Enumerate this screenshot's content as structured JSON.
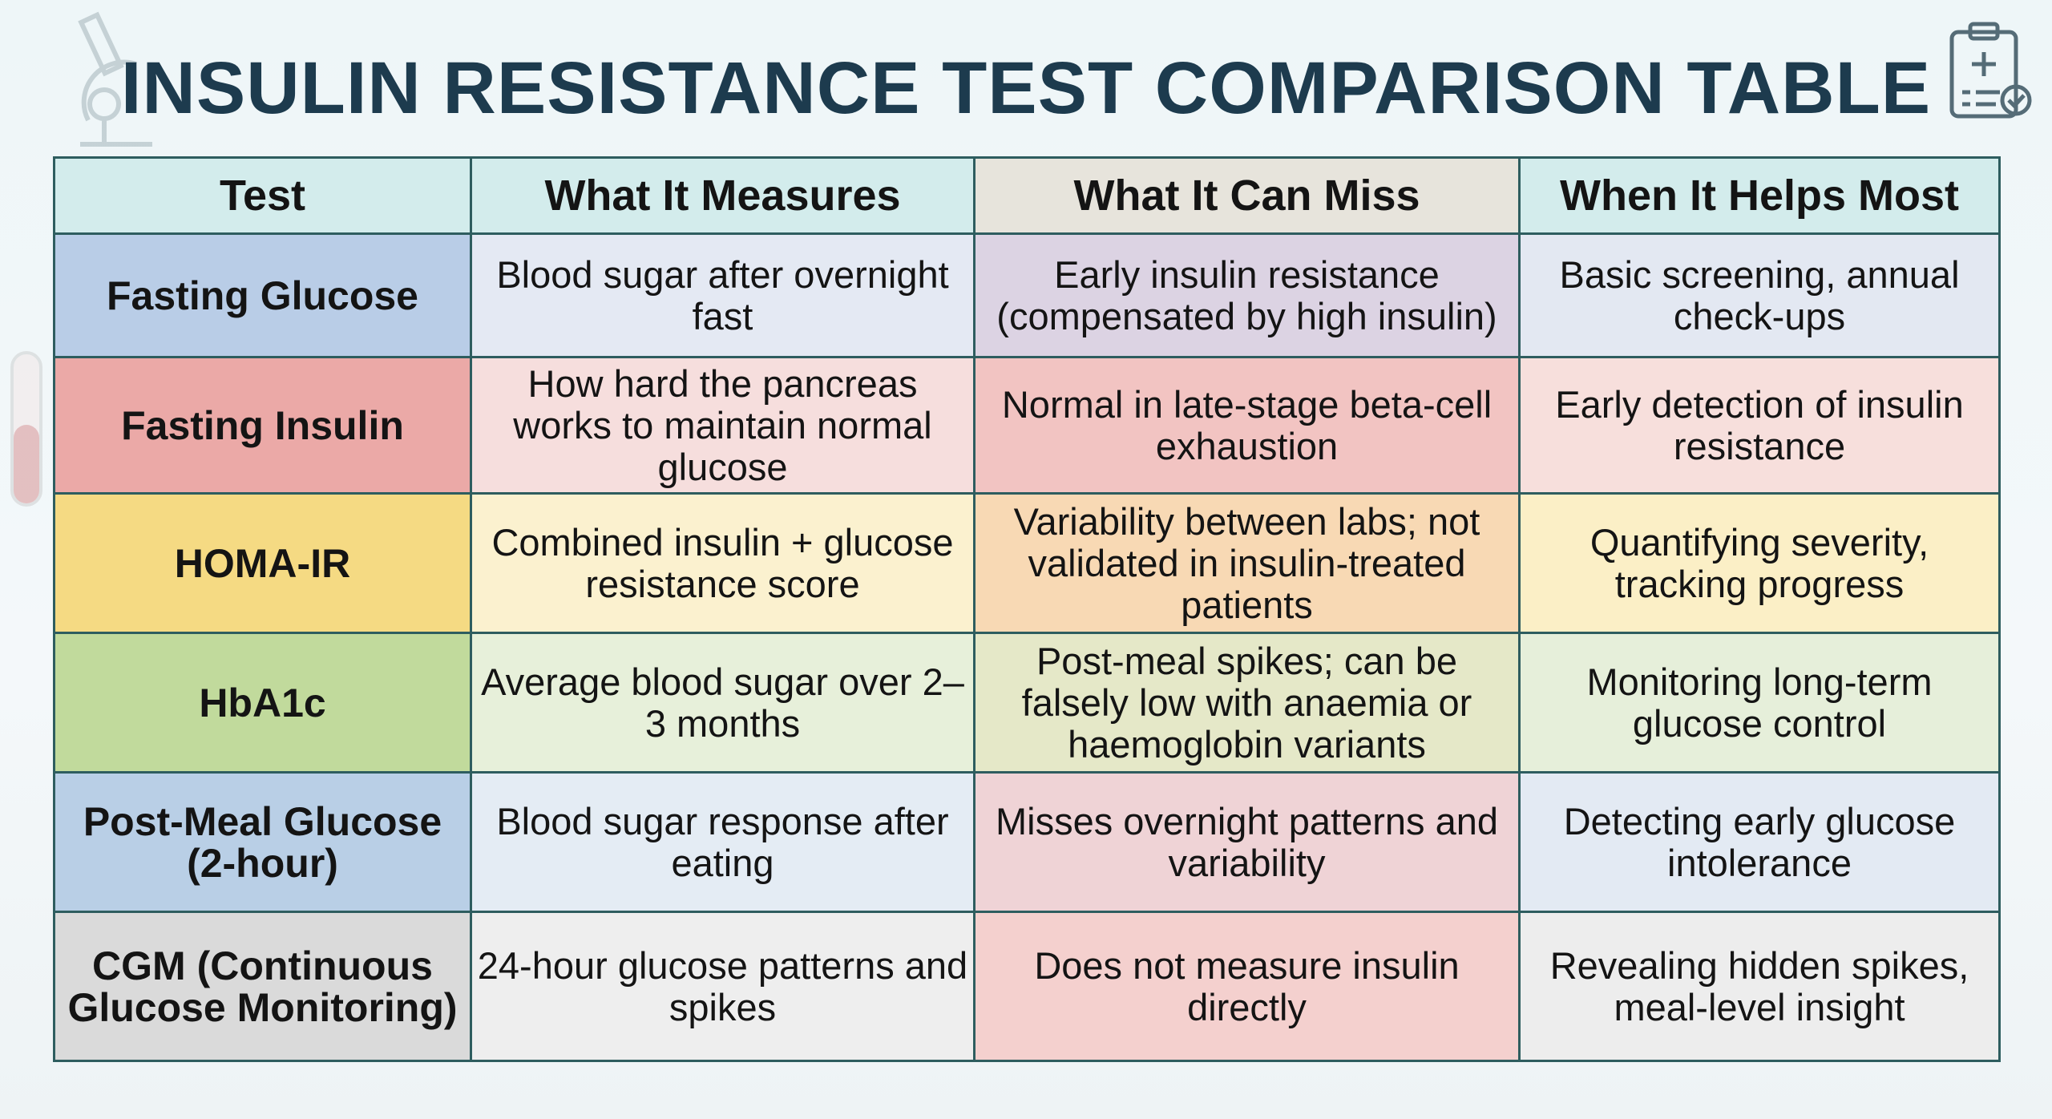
{
  "title": "INSULIN RESISTANCE TEST COMPARISON TABLE",
  "icons": [
    "microscope-icon",
    "clipboard-checklist-icon",
    "test-tube-icon"
  ],
  "columns": [
    "Test",
    "What It Measures",
    "What It Can Miss",
    "When It Helps Most"
  ],
  "rows": [
    {
      "test": "Fasting Glucose",
      "measures": "Blood sugar after overnight fast",
      "miss": "Early insulin resistance (compensated by high insulin)",
      "helps": "Basic screening, annual check-ups",
      "colors": [
        "#b9cde7",
        "#e4e9f3",
        "#dcd3e3",
        "#e3e8f2"
      ]
    },
    {
      "test": "Fasting Insulin",
      "measures": "How hard the pancreas works to maintain normal glucose",
      "miss": "Normal in late-stage beta-cell exhaustion",
      "helps": "Early detection of insulin resistance",
      "colors": [
        "#eba9a7",
        "#f6dedd",
        "#f2c4c2",
        "#f7dfdc"
      ]
    },
    {
      "test": "HOMA-IR",
      "measures": "Combined insulin + glucose resistance score",
      "miss": "Variability between labs; not validated in insulin-treated patients",
      "helps": "Quantifying severity, tracking progress",
      "colors": [
        "#f5da83",
        "#fbf1cf",
        "#f8d9b4",
        "#fbefc6"
      ]
    },
    {
      "test": "HbA1c",
      "measures": "Average blood sugar over 2–3 months",
      "miss": "Post-meal spikes; can be falsely low with anaemia or haemoglobin variants",
      "helps": "Monitoring long-term glucose control",
      "colors": [
        "#c1da9c",
        "#e7f0da",
        "#e5e8c8",
        "#e6efda"
      ]
    },
    {
      "test": "Post-Meal Glucose (2-hour)",
      "measures": "Blood sugar response after eating",
      "miss": "Misses overnight patterns and variability",
      "helps": "Detecting early glucose intolerance",
      "colors": [
        "#b9cfe6",
        "#e4ecf4",
        "#efd3d6",
        "#e3eaf3"
      ]
    },
    {
      "test": "CGM (Continuous Glucose Monitoring)",
      "measures": "24-hour glucose patterns and spikes",
      "miss": "Does not measure insulin directly",
      "helps": "Revealing hidden spikes, meal-level insight",
      "colors": [
        "#dadada",
        "#eeeeee",
        "#f4d0ce",
        "#ededed"
      ]
    }
  ]
}
